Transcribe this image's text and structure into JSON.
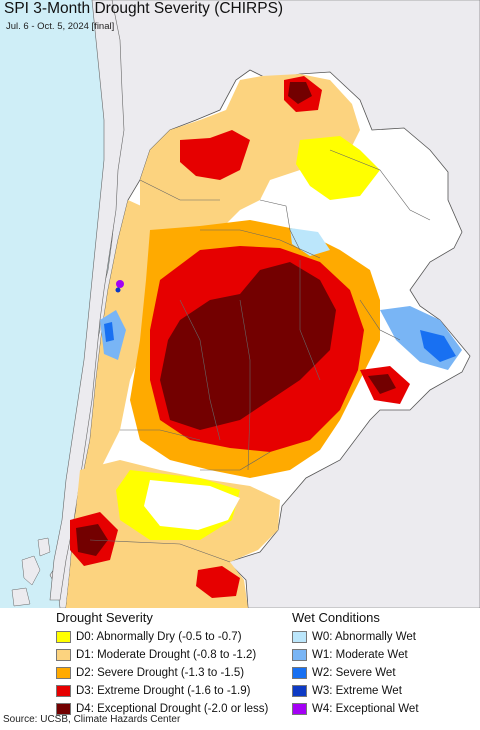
{
  "title": "SPI 3-Month Drought Severity (CHIRPS)",
  "subtitle": "Jul. 6 - Oct. 5, 2024 [final]",
  "colors": {
    "ocean": "#cfeef7",
    "land_outside": "#ecebef",
    "no_drought": "#ffffff",
    "D0": "#ffff00",
    "D1": "#fcd37f",
    "D2": "#ffaa00",
    "D3": "#e60000",
    "D4": "#730000",
    "W0": "#bbe6fb",
    "W1": "#79b5f5",
    "W2": "#1870f2",
    "W3": "#0d3ac4",
    "W4": "#a400f5"
  },
  "legend": {
    "drought": {
      "heading": "Drought Severity",
      "items": [
        {
          "code": "D0",
          "label": "D0: Abnormally Dry (-0.5 to -0.7)"
        },
        {
          "code": "D1",
          "label": "D1: Moderate Drought (-0.8 to -1.2)"
        },
        {
          "code": "D2",
          "label": "D2: Severe Drought (-1.3 to -1.5)"
        },
        {
          "code": "D3",
          "label": "D3: Extreme Drought (-1.6 to -1.9)"
        },
        {
          "code": "D4",
          "label": "D4: Exceptional Drought (-2.0 or less)"
        }
      ]
    },
    "wet": {
      "heading": "Wet Conditions",
      "items": [
        {
          "code": "W0",
          "label": "W0: Abnormally Wet"
        },
        {
          "code": "W1",
          "label": "W1: Moderate Wet"
        },
        {
          "code": "W2",
          "label": "W2: Severe Wet"
        },
        {
          "code": "W3",
          "label": "W3: Extreme Wet"
        },
        {
          "code": "W4",
          "label": "W4: Exceptional Wet"
        }
      ]
    }
  },
  "source": "Source: UCSB, Climate Hazards Center"
}
